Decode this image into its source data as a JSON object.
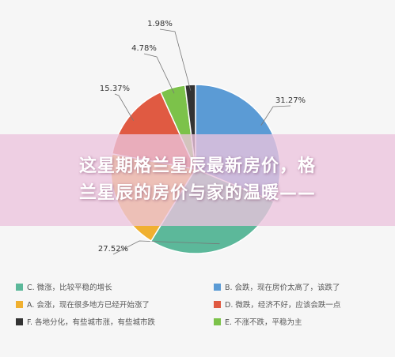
{
  "chart_data": {
    "type": "pie",
    "slices": [
      {
        "key": "B",
        "label": "B. 会跌，现在房价太高了，该跌了",
        "value": 31.27,
        "value_label": "31.27%",
        "color": "#5b9bd5"
      },
      {
        "key": "C",
        "label": "C. 微涨，比较平稳的增长",
        "value": 27.52,
        "value_label": "27.52%",
        "color": "#5cb89a"
      },
      {
        "key": "A",
        "label": "A. 会涨，现在很多地方已经开始涨了",
        "value": 19.08,
        "value_label": "",
        "color": "#f0b030"
      },
      {
        "key": "D",
        "label": "D. 微跌，经济不好，应该会跌一点",
        "value": 15.37,
        "value_label": "15.37%",
        "color": "#e05a42"
      },
      {
        "key": "E",
        "label": "E. 不涨不跌，平稳为主",
        "value": 4.78,
        "value_label": "4.78%",
        "color": "#7cc24a"
      },
      {
        "key": "F",
        "label": "F. 各地分化，有些城市涨，有些城市跌",
        "value": 1.98,
        "value_label": "1.98%",
        "color": "#333333"
      }
    ],
    "legend": [
      {
        "label": "C. 微涨，比较平稳的增长",
        "color": "#5cb89a"
      },
      {
        "label": "B. 会跌，现在房价太高了，该跌了",
        "color": "#5b9bd5"
      },
      {
        "label": "A. 会涨，现在很多地方已经开始涨了",
        "color": "#f0b030"
      },
      {
        "label": "D. 微跌，经济不好，应该会跌一点",
        "color": "#e05a42"
      },
      {
        "label": "F. 各地分化，有些城市涨，有些城市跌",
        "color": "#333333"
      },
      {
        "label": "E. 不涨不跌，平稳为主",
        "color": "#7cc24a"
      }
    ],
    "legend_position": "bottom"
  },
  "banner": {
    "line1": "这星期格兰星辰最新房价，格",
    "line2": "兰星辰的房价与家的温暖——"
  }
}
